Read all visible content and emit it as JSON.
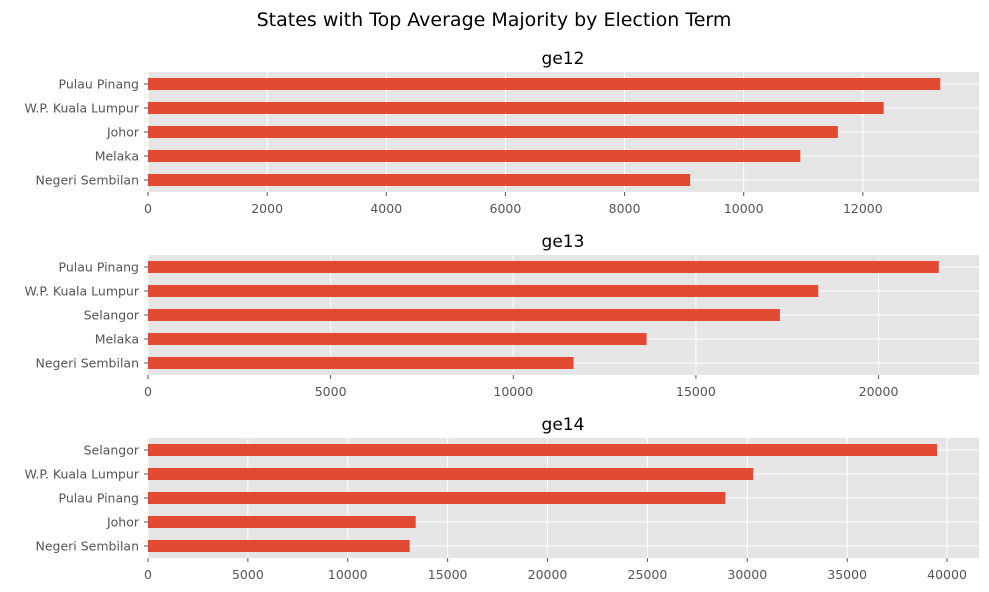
{
  "figure_title": "States with Top Average Majority by Election Term",
  "chart_data": [
    {
      "type": "bar",
      "orientation": "horizontal",
      "title": "ge12",
      "categories": [
        "Pulau Pinang",
        "W.P. Kuala Lumpur",
        "Johor",
        "Melaka",
        "Negeri Sembilan"
      ],
      "values": [
        13300,
        12350,
        11580,
        10950,
        9100
      ],
      "xlim": [
        0,
        13950
      ],
      "xticks": [
        0,
        2000,
        4000,
        6000,
        8000,
        10000,
        12000
      ],
      "xtick_labels": [
        "0",
        "2000",
        "4000",
        "6000",
        "8000",
        "10000",
        "12000"
      ],
      "grid": true,
      "bar_color": "#e24a33"
    },
    {
      "type": "bar",
      "orientation": "horizontal",
      "title": "ge13",
      "categories": [
        "Pulau Pinang",
        "W.P. Kuala Lumpur",
        "Selangor",
        "Melaka",
        "Negeri Sembilan"
      ],
      "values": [
        21650,
        18350,
        17300,
        13650,
        11650
      ],
      "xlim": [
        0,
        22750
      ],
      "xticks": [
        0,
        5000,
        10000,
        15000,
        20000
      ],
      "xtick_labels": [
        "0",
        "5000",
        "10000",
        "15000",
        "20000"
      ],
      "grid": true,
      "bar_color": "#e24a33"
    },
    {
      "type": "bar",
      "orientation": "horizontal",
      "title": "ge14",
      "categories": [
        "Selangor",
        "W.P. Kuala Lumpur",
        "Pulau Pinang",
        "Johor",
        "Negeri Sembilan"
      ],
      "values": [
        39500,
        30300,
        28900,
        13400,
        13100
      ],
      "xlim": [
        0,
        41600
      ],
      "xticks": [
        0,
        5000,
        10000,
        15000,
        20000,
        25000,
        30000,
        35000,
        40000
      ],
      "xtick_labels": [
        "0",
        "5000",
        "10000",
        "15000",
        "20000",
        "25000",
        "30000",
        "35000",
        "40000"
      ],
      "grid": true,
      "bar_color": "#e24a33"
    }
  ]
}
